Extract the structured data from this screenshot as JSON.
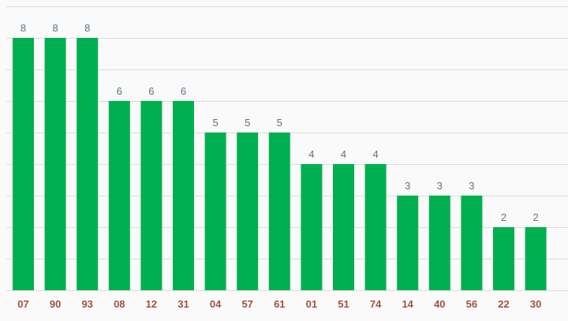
{
  "chart_data": {
    "type": "bar",
    "categories": [
      "07",
      "90",
      "93",
      "08",
      "12",
      "31",
      "04",
      "57",
      "61",
      "01",
      "51",
      "74",
      "14",
      "40",
      "56",
      "22",
      "30"
    ],
    "values": [
      8,
      8,
      8,
      6,
      6,
      6,
      5,
      5,
      5,
      4,
      4,
      4,
      3,
      3,
      3,
      2,
      2
    ],
    "ylim": [
      0,
      9
    ],
    "grid": true,
    "bar_color": "#00b050",
    "value_label_color": "#5b7385",
    "category_label_color": "#a0523d",
    "background": "#fafafa"
  }
}
